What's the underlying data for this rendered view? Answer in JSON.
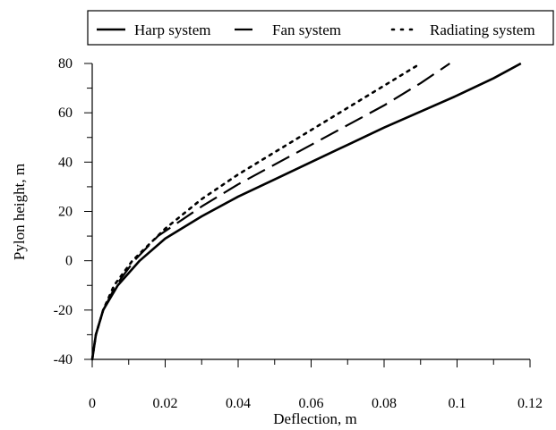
{
  "chart_data": {
    "type": "line",
    "xlabel": "Deflection, m",
    "ylabel": "Pylon height, m",
    "xlim": [
      0,
      0.12
    ],
    "ylim": [
      -40,
      80
    ],
    "x_ticks": [
      0,
      0.02,
      0.04,
      0.06,
      0.08,
      0.1,
      0.12
    ],
    "x_tick_labels": [
      "0",
      "0.02",
      "0.04",
      "0.06",
      "0.08",
      "0.1",
      "0.12"
    ],
    "x_minor_step": 0.01,
    "y_ticks": [
      -40,
      -20,
      0,
      20,
      40,
      60,
      80
    ],
    "y_tick_labels": [
      "-40",
      "-20",
      "0",
      "20",
      "40",
      "60",
      "80"
    ],
    "y_minor_step": 10,
    "grid": false,
    "legend_position": "top",
    "series": [
      {
        "name": "Harp system",
        "line_style": "solid",
        "color": "#000000",
        "points": [
          [
            0,
            -40
          ],
          [
            0.001,
            -30
          ],
          [
            0.003,
            -20
          ],
          [
            0.007,
            -10
          ],
          [
            0.013,
            0
          ],
          [
            0.02,
            9
          ],
          [
            0.03,
            18
          ],
          [
            0.04,
            26
          ],
          [
            0.05,
            33
          ],
          [
            0.06,
            40
          ],
          [
            0.07,
            47
          ],
          [
            0.08,
            54
          ],
          [
            0.09,
            60.5
          ],
          [
            0.1,
            67
          ],
          [
            0.11,
            74
          ],
          [
            0.1175,
            80
          ]
        ]
      },
      {
        "name": "Fan system",
        "line_style": "dashed",
        "color": "#000000",
        "points": [
          [
            0,
            -40
          ],
          [
            0.001,
            -30
          ],
          [
            0.003,
            -20
          ],
          [
            0.0065,
            -10
          ],
          [
            0.0115,
            0
          ],
          [
            0.018,
            10
          ],
          [
            0.025,
            17
          ],
          [
            0.03,
            22
          ],
          [
            0.04,
            31
          ],
          [
            0.05,
            39
          ],
          [
            0.06,
            47
          ],
          [
            0.07,
            55
          ],
          [
            0.08,
            63
          ],
          [
            0.09,
            72
          ],
          [
            0.098,
            80
          ]
        ]
      },
      {
        "name": "Radiating system",
        "line_style": "dotted",
        "color": "#000000",
        "points": [
          [
            0,
            -40
          ],
          [
            0.001,
            -30
          ],
          [
            0.003,
            -20
          ],
          [
            0.006,
            -10
          ],
          [
            0.011,
            0
          ],
          [
            0.02,
            13
          ],
          [
            0.03,
            25
          ],
          [
            0.04,
            35
          ],
          [
            0.05,
            44
          ],
          [
            0.06,
            53
          ],
          [
            0.07,
            62
          ],
          [
            0.08,
            71
          ],
          [
            0.09,
            80
          ]
        ]
      }
    ]
  }
}
